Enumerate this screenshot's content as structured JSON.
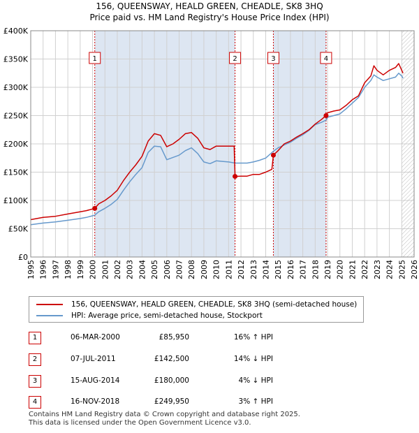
{
  "title_line1": "156, QUEENSWAY, HEALD GREEN, CHEADLE, SK8 3HQ",
  "title_line2": "Price paid vs. HM Land Registry's House Price Index (HPI)",
  "colors": {
    "property": "#cc0000",
    "hpi": "#6699cc",
    "shade": "#dde6f2",
    "grid": "#d0d0d0",
    "event": "#cc0000"
  },
  "chart_data": {
    "type": "line",
    "xlim": [
      1995,
      2026
    ],
    "ylim": [
      0,
      400000
    ],
    "y_ticks": [
      0,
      50000,
      100000,
      150000,
      200000,
      250000,
      300000,
      350000,
      400000
    ],
    "y_tick_labels": [
      "£0",
      "£50K",
      "£100K",
      "£150K",
      "£200K",
      "£250K",
      "£300K",
      "£350K",
      "£400K"
    ],
    "x_ticks": [
      1995,
      1996,
      1997,
      1998,
      1999,
      2000,
      2001,
      2002,
      2003,
      2004,
      2005,
      2006,
      2007,
      2008,
      2009,
      2010,
      2011,
      2012,
      2013,
      2014,
      2015,
      2016,
      2017,
      2018,
      2019,
      2020,
      2021,
      2022,
      2023,
      2024,
      2025,
      2026
    ],
    "x_tick_labels": [
      "1995",
      "1996",
      "1997",
      "1998",
      "1999",
      "2000",
      "2001",
      "2002",
      "2003",
      "2004",
      "2005",
      "2006",
      "2007",
      "2008",
      "2009",
      "2010",
      "2011",
      "2012",
      "2013",
      "2014",
      "2015",
      "2016",
      "2017",
      "2018",
      "2019",
      "2020",
      "2021",
      "2022",
      "2023",
      "2024",
      "2025",
      "2026"
    ],
    "grid": true,
    "shaded_ranges": [
      [
        2000.18,
        2011.52
      ],
      [
        2014.62,
        2018.88
      ]
    ],
    "hatched_from": 2025.0,
    "series": [
      {
        "name": "156, QUEENSWAY, HEALD GREEN, CHEADLE, SK8 3HQ (semi-detached house)",
        "color": "#cc0000",
        "x": [
          1995.0,
          1996.0,
          1997.0,
          1998.0,
          1999.0,
          1999.5,
          2000.18,
          2000.5,
          2001.0,
          2001.5,
          2002.0,
          2002.5,
          2003.0,
          2003.5,
          2004.0,
          2004.5,
          2005.0,
          2005.5,
          2006.0,
          2006.5,
          2007.0,
          2007.5,
          2008.0,
          2008.5,
          2009.0,
          2009.5,
          2010.0,
          2010.5,
          2011.0,
          2011.45,
          2011.52,
          2012.0,
          2012.5,
          2013.0,
          2013.5,
          2014.0,
          2014.5,
          2014.62,
          2015.0,
          2015.5,
          2016.0,
          2016.5,
          2017.0,
          2017.5,
          2018.0,
          2018.5,
          2018.88,
          2019.0,
          2019.5,
          2020.0,
          2020.5,
          2021.0,
          2021.5,
          2022.0,
          2022.5,
          2022.75,
          2023.0,
          2023.5,
          2024.0,
          2024.5,
          2024.75,
          2025.0,
          2025.1
        ],
        "y": [
          66000,
          70000,
          72000,
          76000,
          80000,
          82000,
          85950,
          94000,
          100000,
          108000,
          118000,
          135000,
          150000,
          163000,
          178000,
          205000,
          218000,
          215000,
          195000,
          200000,
          208000,
          218000,
          220000,
          210000,
          193000,
          190000,
          196000,
          196000,
          196000,
          196000,
          142500,
          143000,
          143000,
          146000,
          146000,
          150000,
          155000,
          180000,
          188000,
          200000,
          205000,
          212000,
          218000,
          225000,
          235000,
          243000,
          249950,
          255000,
          258000,
          260000,
          268000,
          278000,
          285000,
          308000,
          320000,
          338000,
          330000,
          322000,
          330000,
          335000,
          342000,
          330000,
          325000
        ]
      },
      {
        "name": "HPI: Average price, semi-detached house, Stockport",
        "color": "#6699cc",
        "x": [
          1995.0,
          1996.0,
          1997.0,
          1998.0,
          1999.0,
          1999.5,
          2000.18,
          2000.5,
          2001.0,
          2001.5,
          2002.0,
          2002.5,
          2003.0,
          2003.5,
          2004.0,
          2004.5,
          2005.0,
          2005.5,
          2006.0,
          2006.5,
          2007.0,
          2007.5,
          2008.0,
          2008.5,
          2009.0,
          2009.5,
          2010.0,
          2010.5,
          2011.0,
          2011.52,
          2012.0,
          2012.5,
          2013.0,
          2013.5,
          2014.0,
          2014.62,
          2015.0,
          2015.5,
          2016.0,
          2016.5,
          2017.0,
          2017.5,
          2018.0,
          2018.5,
          2018.88,
          2019.0,
          2019.5,
          2020.0,
          2020.5,
          2021.0,
          2021.5,
          2022.0,
          2022.5,
          2022.75,
          2023.0,
          2023.5,
          2024.0,
          2024.5,
          2024.75,
          2025.0,
          2025.1
        ],
        "y": [
          57000,
          60000,
          62000,
          65000,
          68000,
          70000,
          74000,
          80000,
          86000,
          93000,
          102000,
          118000,
          133000,
          146000,
          158000,
          185000,
          196000,
          195000,
          172000,
          176000,
          180000,
          188000,
          193000,
          183000,
          168000,
          165000,
          170000,
          169000,
          168000,
          166000,
          166000,
          166000,
          168000,
          171000,
          175000,
          187000,
          193000,
          198000,
          203000,
          210000,
          216000,
          224000,
          234000,
          238000,
          242000,
          247000,
          250000,
          253000,
          262000,
          272000,
          282000,
          300000,
          312000,
          322000,
          318000,
          312000,
          315000,
          318000,
          325000,
          320000,
          316000
        ]
      }
    ],
    "events": [
      {
        "label": "1",
        "x": 2000.18,
        "y": 85950,
        "date": "06-MAR-2000",
        "price": "£85,950",
        "hpi": "16% ↑ HPI"
      },
      {
        "label": "2",
        "x": 2011.52,
        "y": 142500,
        "date": "07-JUL-2011",
        "price": "£142,500",
        "hpi": "14% ↓ HPI"
      },
      {
        "label": "3",
        "x": 2014.62,
        "y": 180000,
        "date": "15-AUG-2014",
        "price": "£180,000",
        "hpi": "4% ↓ HPI"
      },
      {
        "label": "4",
        "x": 2018.88,
        "y": 249950,
        "date": "16-NOV-2018",
        "price": "£249,950",
        "hpi": "3% ↑ HPI"
      }
    ]
  },
  "legend": {
    "property": "156, QUEENSWAY, HEALD GREEN, CHEADLE, SK8 3HQ (semi-detached house)",
    "hpi": "HPI: Average price, semi-detached house, Stockport"
  },
  "transactions": [
    {
      "num": "1",
      "date": "06-MAR-2000",
      "price": "£85,950",
      "hpi": "16% ↑ HPI"
    },
    {
      "num": "2",
      "date": "07-JUL-2011",
      "price": "£142,500",
      "hpi": "14% ↓ HPI"
    },
    {
      "num": "3",
      "date": "15-AUG-2014",
      "price": "£180,000",
      "hpi": "4% ↓ HPI"
    },
    {
      "num": "4",
      "date": "16-NOV-2018",
      "price": "£249,950",
      "hpi": "3% ↑ HPI"
    }
  ],
  "footer_line1": "Contains HM Land Registry data © Crown copyright and database right 2025.",
  "footer_line2": "This data is licensed under the Open Government Licence v3.0."
}
